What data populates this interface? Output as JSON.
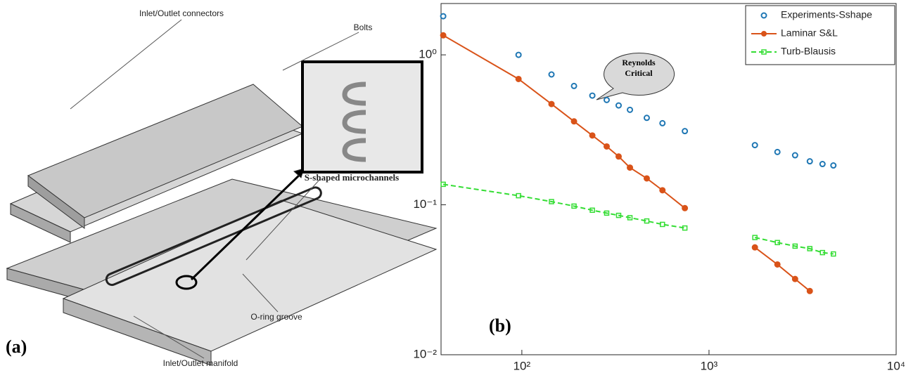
{
  "figure_a": {
    "panel_label": "(a)",
    "labels": [
      "Inlet/Outlet connectors",
      "Bolts",
      "S-shaped microchannels",
      "O-ring groove",
      "Inlet/Outlet manifold"
    ]
  },
  "chart_data": {
    "type": "line",
    "panel_label": "(b)",
    "annotation": "Reynolds Critical",
    "x": [
      38,
      96,
      144,
      190,
      238,
      284,
      329,
      378,
      465,
      564,
      743,
      null,
      1759,
      2320,
      2884,
      3456,
      4040,
      4620
    ],
    "series": [
      {
        "name": "Experiments-Sshape",
        "color": "#1f77b4",
        "style": "markers",
        "values": [
          1.81,
          1.0,
          0.74,
          0.62,
          0.535,
          0.5,
          0.46,
          0.43,
          0.38,
          0.35,
          0.31,
          null,
          0.25,
          0.225,
          0.214,
          0.195,
          0.187,
          0.183
        ]
      },
      {
        "name": "Laminar S&L",
        "color": "#d95319",
        "style": "solid",
        "values": [
          1.35,
          0.69,
          0.47,
          0.36,
          0.29,
          0.245,
          0.21,
          0.177,
          0.15,
          0.125,
          0.095,
          null,
          0.052,
          0.04,
          0.032,
          0.0266,
          null,
          null
        ]
      },
      {
        "name": "Turb-Blausis",
        "color": "#33dd33",
        "style": "dashed",
        "values": [
          0.137,
          0.115,
          0.105,
          0.098,
          0.092,
          0.088,
          0.085,
          0.082,
          0.078,
          0.074,
          0.07,
          null,
          0.0605,
          0.056,
          0.053,
          0.051,
          0.048,
          0.047
        ]
      }
    ],
    "xscale": "log",
    "yscale": "log",
    "xlim": [
      37,
      10000
    ],
    "ylim": [
      0.01,
      2.2
    ],
    "xticks": [
      {
        "value": 100,
        "label": "10²"
      },
      {
        "value": 1000,
        "label": "10³"
      },
      {
        "value": 10000,
        "label": "10⁴"
      }
    ],
    "yticks": [
      {
        "value": 0.01,
        "label": "10⁻²"
      },
      {
        "value": 0.1,
        "label": "10⁻¹"
      },
      {
        "value": 1,
        "label": "10⁰"
      }
    ],
    "legend": "upper right"
  }
}
